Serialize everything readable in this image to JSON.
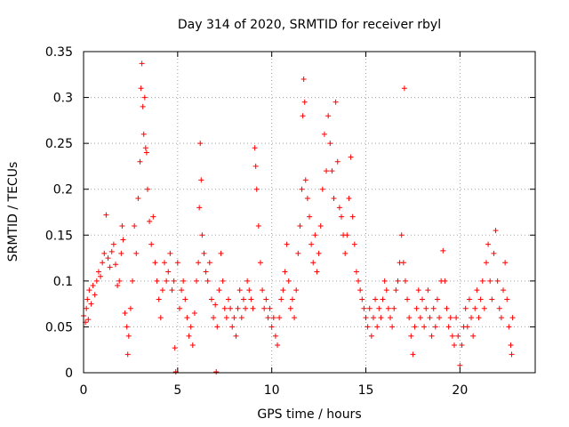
{
  "chart_data": {
    "type": "scatter",
    "title": "Day 314 of 2020, SRMTID for receiver rbyl",
    "xlabel": "GPS time / hours",
    "ylabel": "SRMTID / TECUs",
    "xlim": [
      0,
      24
    ],
    "ylim": [
      0,
      0.35
    ],
    "xticks": [
      0,
      5,
      10,
      15,
      20
    ],
    "xtick_labels": [
      "0",
      "5",
      "10",
      "15",
      "20"
    ],
    "yticks": [
      0,
      0.05,
      0.1,
      0.15,
      0.2,
      0.25,
      0.3,
      0.35
    ],
    "ytick_labels": [
      "0",
      "0.05",
      "0.1",
      "0.15",
      "0.2",
      "0.25",
      "0.3",
      "0.35"
    ],
    "grid": true,
    "marker": "+",
    "marker_color": "#ff0000",
    "series": [
      {
        "name": "SRMTID",
        "points": [
          [
            0.0,
            0.062
          ],
          [
            0.1,
            0.055
          ],
          [
            0.15,
            0.07
          ],
          [
            0.2,
            0.08
          ],
          [
            0.25,
            0.058
          ],
          [
            0.3,
            0.09
          ],
          [
            0.4,
            0.075
          ],
          [
            0.5,
            0.095
          ],
          [
            0.6,
            0.085
          ],
          [
            0.7,
            0.1
          ],
          [
            0.8,
            0.11
          ],
          [
            0.9,
            0.105
          ],
          [
            1.0,
            0.12
          ],
          [
            1.1,
            0.13
          ],
          [
            1.2,
            0.172
          ],
          [
            1.3,
            0.125
          ],
          [
            1.4,
            0.115
          ],
          [
            1.5,
            0.132
          ],
          [
            1.6,
            0.14
          ],
          [
            1.7,
            0.118
          ],
          [
            1.8,
            0.095
          ],
          [
            1.9,
            0.1
          ],
          [
            2.0,
            0.13
          ],
          [
            2.05,
            0.16
          ],
          [
            2.1,
            0.145
          ],
          [
            2.2,
            0.065
          ],
          [
            2.3,
            0.05
          ],
          [
            2.35,
            0.02
          ],
          [
            2.4,
            0.04
          ],
          [
            2.5,
            0.07
          ],
          [
            2.6,
            0.1
          ],
          [
            2.7,
            0.16
          ],
          [
            2.8,
            0.13
          ],
          [
            2.9,
            0.19
          ],
          [
            3.0,
            0.23
          ],
          [
            3.05,
            0.31
          ],
          [
            3.1,
            0.337
          ],
          [
            3.15,
            0.29
          ],
          [
            3.2,
            0.26
          ],
          [
            3.25,
            0.3
          ],
          [
            3.3,
            0.245
          ],
          [
            3.35,
            0.24
          ],
          [
            3.4,
            0.2
          ],
          [
            3.5,
            0.165
          ],
          [
            3.6,
            0.14
          ],
          [
            3.7,
            0.17
          ],
          [
            3.8,
            0.12
          ],
          [
            3.9,
            0.1
          ],
          [
            4.0,
            0.08
          ],
          [
            4.1,
            0.06
          ],
          [
            4.2,
            0.09
          ],
          [
            4.3,
            0.12
          ],
          [
            4.4,
            0.1
          ],
          [
            4.5,
            0.11
          ],
          [
            4.6,
            0.13
          ],
          [
            4.7,
            0.09
          ],
          [
            4.8,
            0.1
          ],
          [
            4.85,
            0.027
          ],
          [
            4.9,
            0.001
          ],
          [
            5.0,
            0.12
          ],
          [
            5.1,
            0.07
          ],
          [
            5.2,
            0.09
          ],
          [
            5.3,
            0.1
          ],
          [
            5.4,
            0.08
          ],
          [
            5.5,
            0.06
          ],
          [
            5.6,
            0.04
          ],
          [
            5.7,
            0.05
          ],
          [
            5.8,
            0.03
          ],
          [
            5.9,
            0.065
          ],
          [
            6.0,
            0.1
          ],
          [
            6.1,
            0.12
          ],
          [
            6.15,
            0.18
          ],
          [
            6.2,
            0.25
          ],
          [
            6.25,
            0.21
          ],
          [
            6.3,
            0.15
          ],
          [
            6.4,
            0.13
          ],
          [
            6.5,
            0.11
          ],
          [
            6.6,
            0.1
          ],
          [
            6.7,
            0.12
          ],
          [
            6.8,
            0.08
          ],
          [
            6.9,
            0.06
          ],
          [
            7.0,
            0.074
          ],
          [
            7.05,
            0.001
          ],
          [
            7.1,
            0.05
          ],
          [
            7.2,
            0.09
          ],
          [
            7.3,
            0.13
          ],
          [
            7.4,
            0.1
          ],
          [
            7.5,
            0.07
          ],
          [
            7.6,
            0.06
          ],
          [
            7.7,
            0.08
          ],
          [
            7.8,
            0.07
          ],
          [
            7.9,
            0.05
          ],
          [
            8.0,
            0.06
          ],
          [
            8.1,
            0.04
          ],
          [
            8.2,
            0.07
          ],
          [
            8.3,
            0.09
          ],
          [
            8.4,
            0.06
          ],
          [
            8.5,
            0.08
          ],
          [
            8.6,
            0.07
          ],
          [
            8.7,
            0.1
          ],
          [
            8.8,
            0.09
          ],
          [
            8.9,
            0.08
          ],
          [
            9.0,
            0.07
          ],
          [
            9.1,
            0.245
          ],
          [
            9.15,
            0.225
          ],
          [
            9.2,
            0.2
          ],
          [
            9.3,
            0.16
          ],
          [
            9.4,
            0.12
          ],
          [
            9.5,
            0.09
          ],
          [
            9.6,
            0.07
          ],
          [
            9.7,
            0.08
          ],
          [
            9.8,
            0.06
          ],
          [
            9.9,
            0.07
          ],
          [
            10.0,
            0.05
          ],
          [
            10.1,
            0.06
          ],
          [
            10.2,
            0.04
          ],
          [
            10.3,
            0.03
          ],
          [
            10.4,
            0.06
          ],
          [
            10.5,
            0.08
          ],
          [
            10.6,
            0.09
          ],
          [
            10.7,
            0.11
          ],
          [
            10.8,
            0.14
          ],
          [
            10.9,
            0.1
          ],
          [
            11.0,
            0.07
          ],
          [
            11.1,
            0.08
          ],
          [
            11.2,
            0.06
          ],
          [
            11.3,
            0.09
          ],
          [
            11.4,
            0.13
          ],
          [
            11.5,
            0.16
          ],
          [
            11.6,
            0.2
          ],
          [
            11.65,
            0.28
          ],
          [
            11.7,
            0.32
          ],
          [
            11.75,
            0.295
          ],
          [
            11.8,
            0.21
          ],
          [
            11.9,
            0.19
          ],
          [
            12.0,
            0.17
          ],
          [
            12.1,
            0.14
          ],
          [
            12.2,
            0.12
          ],
          [
            12.3,
            0.15
          ],
          [
            12.4,
            0.11
          ],
          [
            12.5,
            0.13
          ],
          [
            12.6,
            0.16
          ],
          [
            12.7,
            0.2
          ],
          [
            12.8,
            0.26
          ],
          [
            12.9,
            0.22
          ],
          [
            13.0,
            0.28
          ],
          [
            13.1,
            0.25
          ],
          [
            13.2,
            0.22
          ],
          [
            13.3,
            0.19
          ],
          [
            13.4,
            0.295
          ],
          [
            13.5,
            0.23
          ],
          [
            13.6,
            0.18
          ],
          [
            13.7,
            0.17
          ],
          [
            13.8,
            0.15
          ],
          [
            13.9,
            0.13
          ],
          [
            14.0,
            0.15
          ],
          [
            14.1,
            0.19
          ],
          [
            14.2,
            0.235
          ],
          [
            14.3,
            0.17
          ],
          [
            14.4,
            0.14
          ],
          [
            14.5,
            0.11
          ],
          [
            14.6,
            0.1
          ],
          [
            14.7,
            0.09
          ],
          [
            14.8,
            0.08
          ],
          [
            14.9,
            0.07
          ],
          [
            15.0,
            0.06
          ],
          [
            15.1,
            0.05
          ],
          [
            15.2,
            0.07
          ],
          [
            15.3,
            0.04
          ],
          [
            15.4,
            0.06
          ],
          [
            15.5,
            0.08
          ],
          [
            15.6,
            0.05
          ],
          [
            15.7,
            0.07
          ],
          [
            15.8,
            0.06
          ],
          [
            15.9,
            0.08
          ],
          [
            16.0,
            0.1
          ],
          [
            16.1,
            0.09
          ],
          [
            16.2,
            0.07
          ],
          [
            16.3,
            0.06
          ],
          [
            16.4,
            0.05
          ],
          [
            16.5,
            0.07
          ],
          [
            16.6,
            0.09
          ],
          [
            16.7,
            0.1
          ],
          [
            16.8,
            0.12
          ],
          [
            16.9,
            0.15
          ],
          [
            17.0,
            0.12
          ],
          [
            17.05,
            0.31
          ],
          [
            17.1,
            0.1
          ],
          [
            17.2,
            0.08
          ],
          [
            17.3,
            0.06
          ],
          [
            17.4,
            0.04
          ],
          [
            17.5,
            0.02
          ],
          [
            17.6,
            0.05
          ],
          [
            17.7,
            0.07
          ],
          [
            17.8,
            0.09
          ],
          [
            17.9,
            0.06
          ],
          [
            18.0,
            0.08
          ],
          [
            18.1,
            0.05
          ],
          [
            18.2,
            0.07
          ],
          [
            18.3,
            0.09
          ],
          [
            18.4,
            0.06
          ],
          [
            18.5,
            0.04
          ],
          [
            18.6,
            0.07
          ],
          [
            18.7,
            0.05
          ],
          [
            18.8,
            0.08
          ],
          [
            18.9,
            0.06
          ],
          [
            19.0,
            0.1
          ],
          [
            19.1,
            0.133
          ],
          [
            19.2,
            0.1
          ],
          [
            19.3,
            0.07
          ],
          [
            19.4,
            0.05
          ],
          [
            19.5,
            0.06
          ],
          [
            19.6,
            0.04
          ],
          [
            19.7,
            0.03
          ],
          [
            19.8,
            0.06
          ],
          [
            19.9,
            0.04
          ],
          [
            20.0,
            0.008
          ],
          [
            20.1,
            0.03
          ],
          [
            20.2,
            0.05
          ],
          [
            20.3,
            0.07
          ],
          [
            20.4,
            0.05
          ],
          [
            20.5,
            0.08
          ],
          [
            20.6,
            0.06
          ],
          [
            20.7,
            0.04
          ],
          [
            20.8,
            0.07
          ],
          [
            20.9,
            0.09
          ],
          [
            21.0,
            0.06
          ],
          [
            21.1,
            0.08
          ],
          [
            21.2,
            0.1
          ],
          [
            21.3,
            0.07
          ],
          [
            21.4,
            0.12
          ],
          [
            21.5,
            0.14
          ],
          [
            21.6,
            0.1
          ],
          [
            21.7,
            0.08
          ],
          [
            21.8,
            0.13
          ],
          [
            21.9,
            0.155
          ],
          [
            22.0,
            0.1
          ],
          [
            22.1,
            0.07
          ],
          [
            22.2,
            0.06
          ],
          [
            22.3,
            0.09
          ],
          [
            22.4,
            0.12
          ],
          [
            22.5,
            0.08
          ],
          [
            22.6,
            0.05
          ],
          [
            22.7,
            0.03
          ],
          [
            22.75,
            0.02
          ],
          [
            22.8,
            0.06
          ]
        ]
      }
    ]
  }
}
